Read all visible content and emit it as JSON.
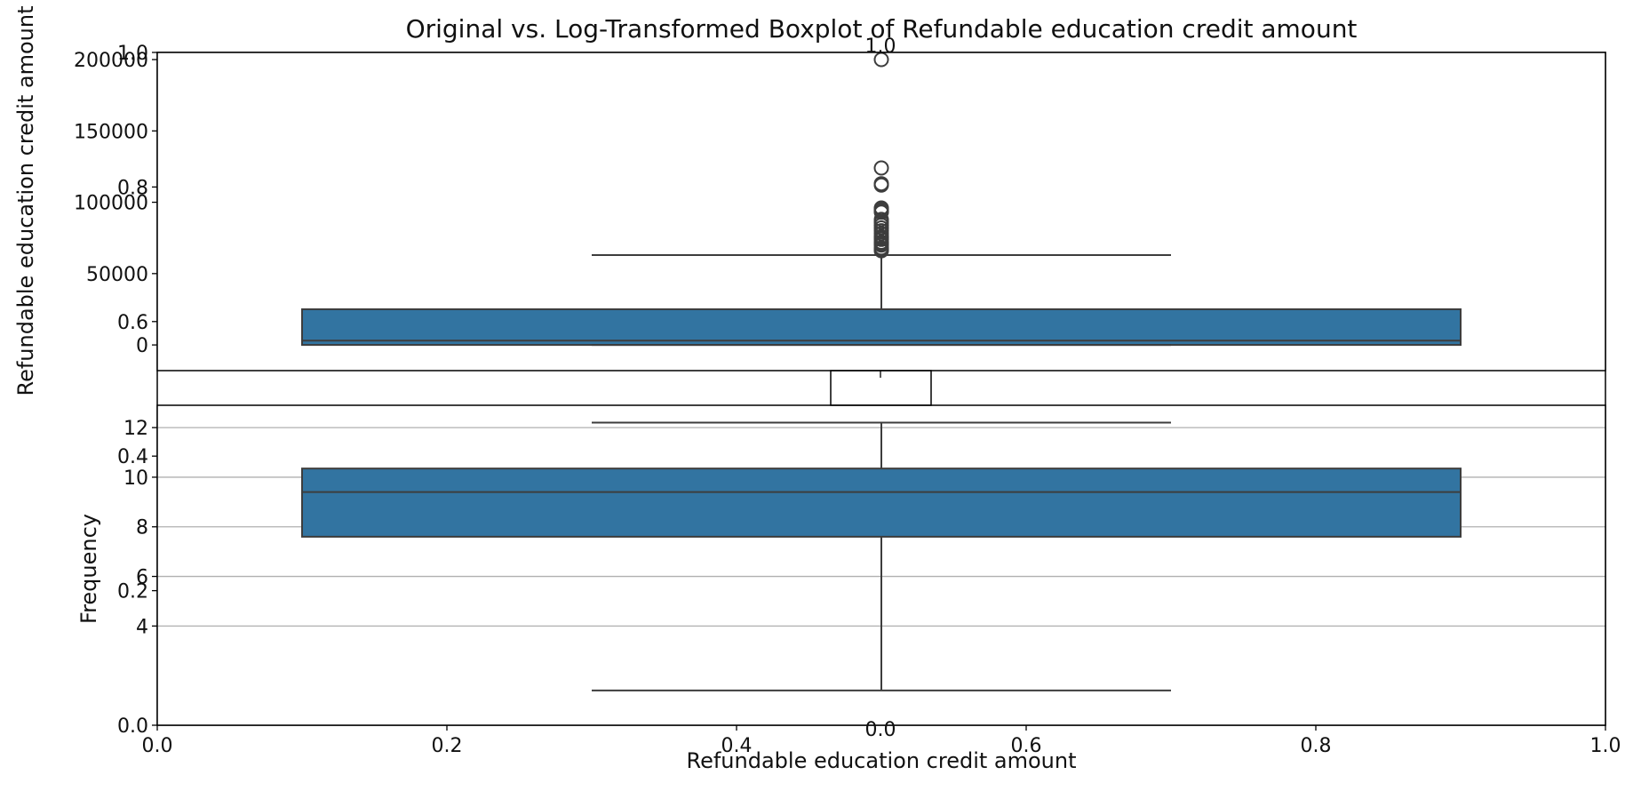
{
  "title": "Original vs. Log-Transformed Boxplot of Refundable education credit amount",
  "colors": {
    "box_fill": "#3274a1",
    "line": "#3d3d3d",
    "grid": "#b0b0b0",
    "axes": "#000000"
  },
  "chart_data": [
    {
      "type": "boxplot",
      "name": "original",
      "xlabel": "",
      "ylabel": "Refundable education credit amount",
      "ylim": [
        -18000,
        205000
      ],
      "yticks": [
        0,
        50000,
        100000,
        150000,
        200000
      ],
      "ytick_labels": [
        "0",
        "50000",
        "100000",
        "150000",
        "200000"
      ],
      "grid": false,
      "box": {
        "q1": 0,
        "median": 3000,
        "q3": 25000,
        "whisker_low": 0,
        "whisker_high": 63000
      },
      "outliers": [
        200000,
        124000,
        113000,
        112000,
        96000,
        95000,
        94000,
        93000,
        88000,
        86000,
        84000,
        82000,
        80000,
        78000,
        76000,
        75000,
        74000,
        72000,
        71000,
        70000,
        68000,
        67000,
        66000
      ]
    },
    {
      "type": "boxplot",
      "name": "log",
      "xlabel": "",
      "ylabel": "Frequency",
      "ylim": [
        0,
        12.9
      ],
      "yticks": [
        4,
        6,
        8,
        10,
        12
      ],
      "ytick_labels": [
        "4",
        "6",
        "8",
        "10",
        "12"
      ],
      "grid": true,
      "box": {
        "q1": 7.6,
        "median": 9.4,
        "q3": 10.35,
        "whisker_low": 1.4,
        "whisker_high": 12.2
      },
      "outliers": []
    },
    {
      "type": "empty-axes",
      "name": "background",
      "xlabel": "Refundable education credit amount",
      "xlim": [
        0,
        1
      ],
      "ylim": [
        0,
        1
      ],
      "xticks": [
        "0.0",
        "0.2",
        "0.4",
        "0.6",
        "0.8",
        "1.0"
      ],
      "yticks": [
        "0.0",
        "0.2",
        "0.4",
        "0.6",
        "0.8",
        "1.0"
      ]
    },
    {
      "type": "empty-axes",
      "name": "overlay",
      "xlim": [
        0,
        1
      ],
      "ylim": [
        0,
        1
      ],
      "xticks": [
        "0.0",
        "1.0"
      ],
      "yticks": [
        "0.0",
        "1.0"
      ]
    }
  ]
}
